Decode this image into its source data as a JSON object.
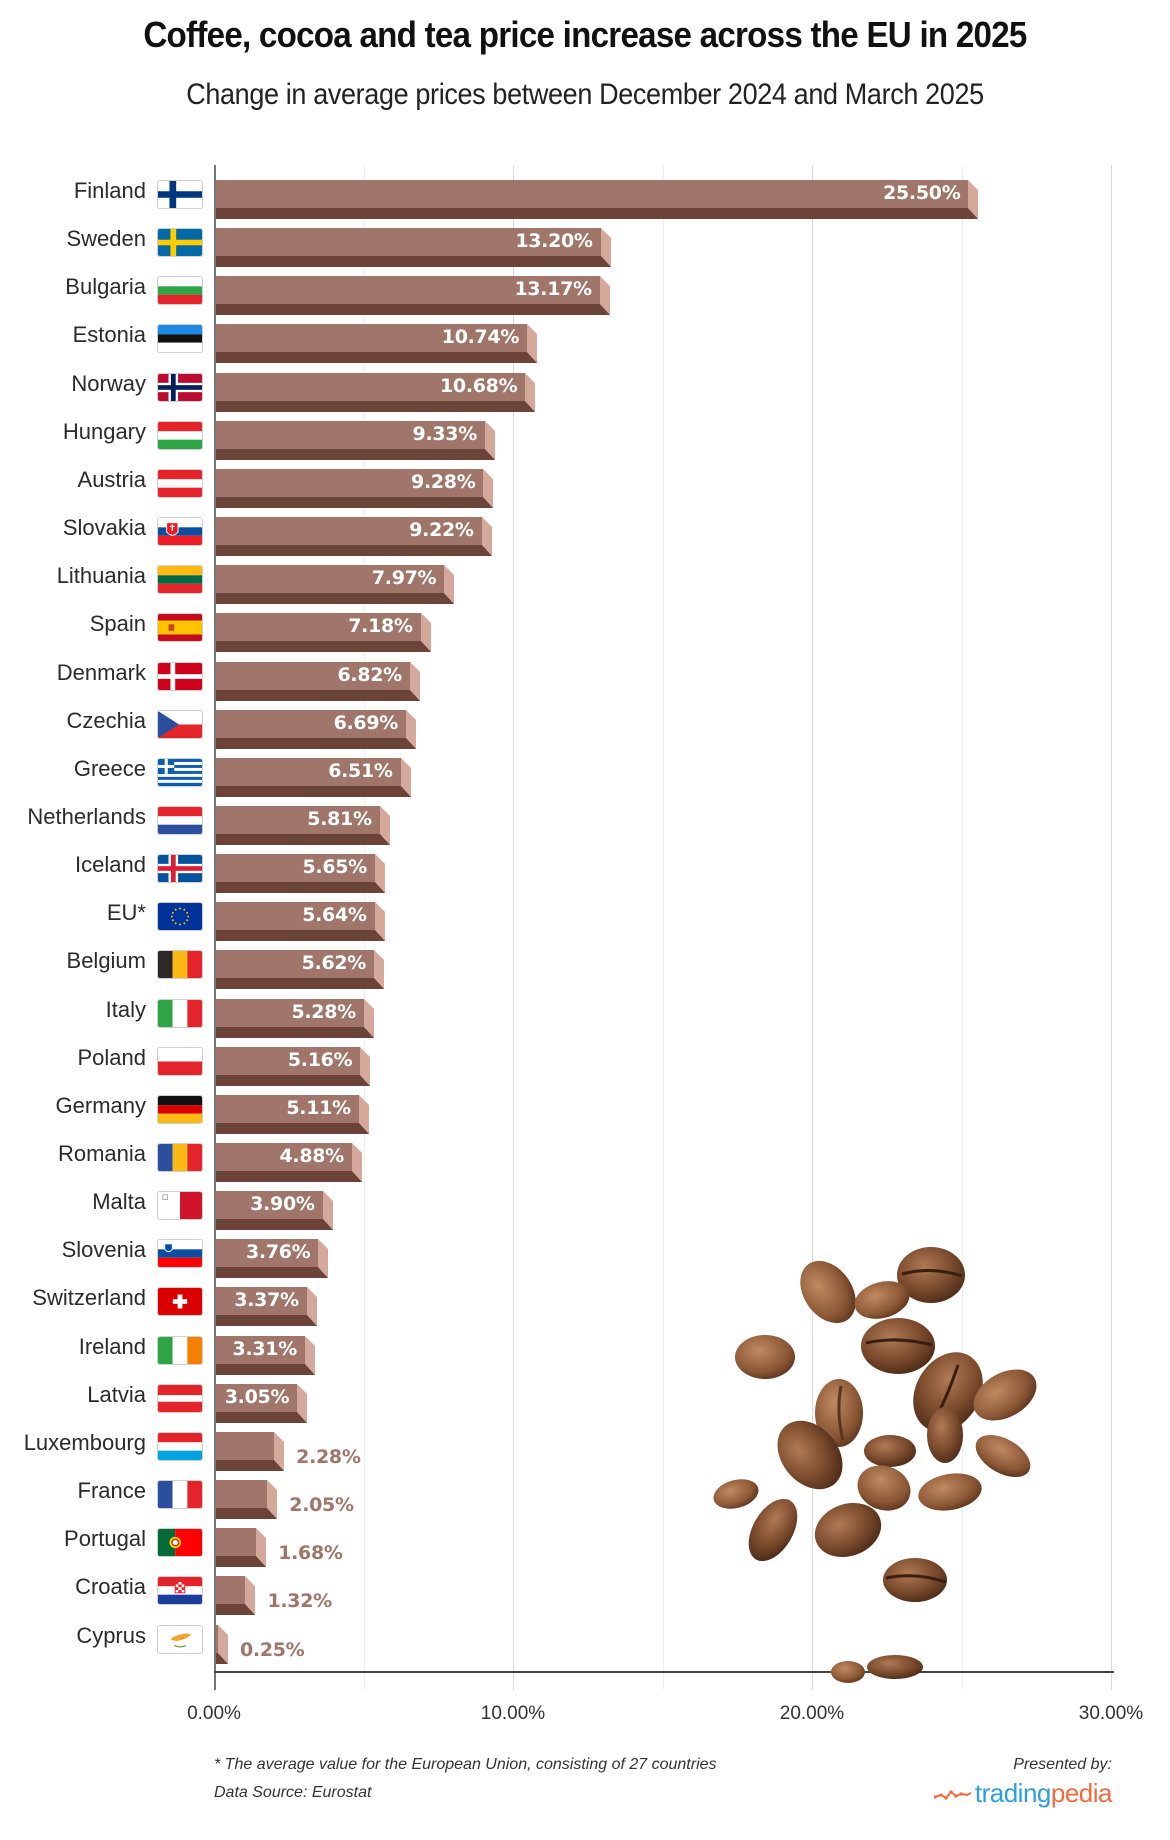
{
  "header": {
    "title": "Coffee, cocoa and tea price increase across the EU in 2025",
    "subtitle": "Change in average prices between December 2024 and March 2025"
  },
  "axis": {
    "ticks": [
      "0.00%",
      "10.00%",
      "20.00%",
      "30.00%"
    ],
    "tick_values": [
      0,
      10,
      20,
      30
    ],
    "gridlines": [
      0,
      5,
      10,
      15,
      20,
      25,
      30
    ]
  },
  "footer": {
    "footnote": "* The average value for the European Union, consisting of 27 countries",
    "source": "Data Source: Eurostat",
    "presented_by": "Presented by:",
    "brand_part1": "trading",
    "brand_part2": "pedia"
  },
  "colors": {
    "bar_face": "#a0756a",
    "bar_shadow": "#6b4337",
    "bar_bevel": "#d4a89a",
    "label_outside": "#a0756a",
    "brand_blue": "#2e9ee0",
    "brand_orange": "#f26a3c"
  },
  "rows": [
    {
      "country": "Finland",
      "value": 25.5,
      "label": "25.50%",
      "flag": "fi"
    },
    {
      "country": "Sweden",
      "value": 13.2,
      "label": "13.20%",
      "flag": "se"
    },
    {
      "country": "Bulgaria",
      "value": 13.17,
      "label": "13.17%",
      "flag": "bg"
    },
    {
      "country": "Estonia",
      "value": 10.74,
      "label": "10.74%",
      "flag": "ee"
    },
    {
      "country": "Norway",
      "value": 10.68,
      "label": "10.68%",
      "flag": "no"
    },
    {
      "country": "Hungary",
      "value": 9.33,
      "label": "9.33%",
      "flag": "hu"
    },
    {
      "country": "Austria",
      "value": 9.28,
      "label": "9.28%",
      "flag": "at"
    },
    {
      "country": "Slovakia",
      "value": 9.22,
      "label": "9.22%",
      "flag": "sk"
    },
    {
      "country": "Lithuania",
      "value": 7.97,
      "label": "7.97%",
      "flag": "lt"
    },
    {
      "country": "Spain",
      "value": 7.18,
      "label": "7.18%",
      "flag": "es"
    },
    {
      "country": "Denmark",
      "value": 6.82,
      "label": "6.82%",
      "flag": "dk"
    },
    {
      "country": "Czechia",
      "value": 6.69,
      "label": "6.69%",
      "flag": "cz"
    },
    {
      "country": "Greece",
      "value": 6.51,
      "label": "6.51%",
      "flag": "gr"
    },
    {
      "country": "Netherlands",
      "value": 5.81,
      "label": "5.81%",
      "flag": "nl"
    },
    {
      "country": "Iceland",
      "value": 5.65,
      "label": "5.65%",
      "flag": "is"
    },
    {
      "country": "EU*",
      "value": 5.64,
      "label": "5.64%",
      "flag": "eu"
    },
    {
      "country": "Belgium",
      "value": 5.62,
      "label": "5.62%",
      "flag": "be"
    },
    {
      "country": "Italy",
      "value": 5.28,
      "label": "5.28%",
      "flag": "it"
    },
    {
      "country": "Poland",
      "value": 5.16,
      "label": "5.16%",
      "flag": "pl"
    },
    {
      "country": "Germany",
      "value": 5.11,
      "label": "5.11%",
      "flag": "de"
    },
    {
      "country": "Romania",
      "value": 4.88,
      "label": "4.88%",
      "flag": "ro"
    },
    {
      "country": "Malta",
      "value": 3.9,
      "label": "3.90%",
      "flag": "mt"
    },
    {
      "country": "Slovenia",
      "value": 3.76,
      "label": "3.76%",
      "flag": "si"
    },
    {
      "country": "Switzerland",
      "value": 3.37,
      "label": "3.37%",
      "flag": "ch"
    },
    {
      "country": "Ireland",
      "value": 3.31,
      "label": "3.31%",
      "flag": "ie"
    },
    {
      "country": "Latvia",
      "value": 3.05,
      "label": "3.05%",
      "flag": "lv"
    },
    {
      "country": "Luxembourg",
      "value": 2.28,
      "label": "2.28%",
      "flag": "lu"
    },
    {
      "country": "France",
      "value": 2.05,
      "label": "2.05%",
      "flag": "fr"
    },
    {
      "country": "Portugal",
      "value": 1.68,
      "label": "1.68%",
      "flag": "pt"
    },
    {
      "country": "Croatia",
      "value": 1.32,
      "label": "1.32%",
      "flag": "hr"
    },
    {
      "country": "Cyprus",
      "value": 0.25,
      "label": "0.25%",
      "flag": "cy"
    }
  ],
  "chart_data": {
    "type": "bar",
    "orientation": "horizontal",
    "title": "Coffee, cocoa and tea price increase across the EU in 2025",
    "subtitle": "Change in average prices between December 2024 and March 2025",
    "xlabel": "",
    "ylabel": "",
    "xlim": [
      0,
      30
    ],
    "x_ticks": [
      "0.00%",
      "10.00%",
      "20.00%",
      "30.00%"
    ],
    "grid": true,
    "legend": null,
    "categories": [
      "Finland",
      "Sweden",
      "Bulgaria",
      "Estonia",
      "Norway",
      "Hungary",
      "Austria",
      "Slovakia",
      "Lithuania",
      "Spain",
      "Denmark",
      "Czechia",
      "Greece",
      "Netherlands",
      "Iceland",
      "EU*",
      "Belgium",
      "Italy",
      "Poland",
      "Germany",
      "Romania",
      "Malta",
      "Slovenia",
      "Switzerland",
      "Ireland",
      "Latvia",
      "Luxembourg",
      "France",
      "Portugal",
      "Croatia",
      "Cyprus"
    ],
    "values": [
      25.5,
      13.2,
      13.17,
      10.74,
      10.68,
      9.33,
      9.28,
      9.22,
      7.97,
      7.18,
      6.82,
      6.69,
      6.51,
      5.81,
      5.65,
      5.64,
      5.62,
      5.28,
      5.16,
      5.11,
      4.88,
      3.9,
      3.76,
      3.37,
      3.31,
      3.05,
      2.28,
      2.05,
      1.68,
      1.32,
      0.25
    ],
    "unit": "%",
    "annotations": [
      "* The average value for the European Union, consisting of 27 countries",
      "Data Source: Eurostat"
    ]
  }
}
